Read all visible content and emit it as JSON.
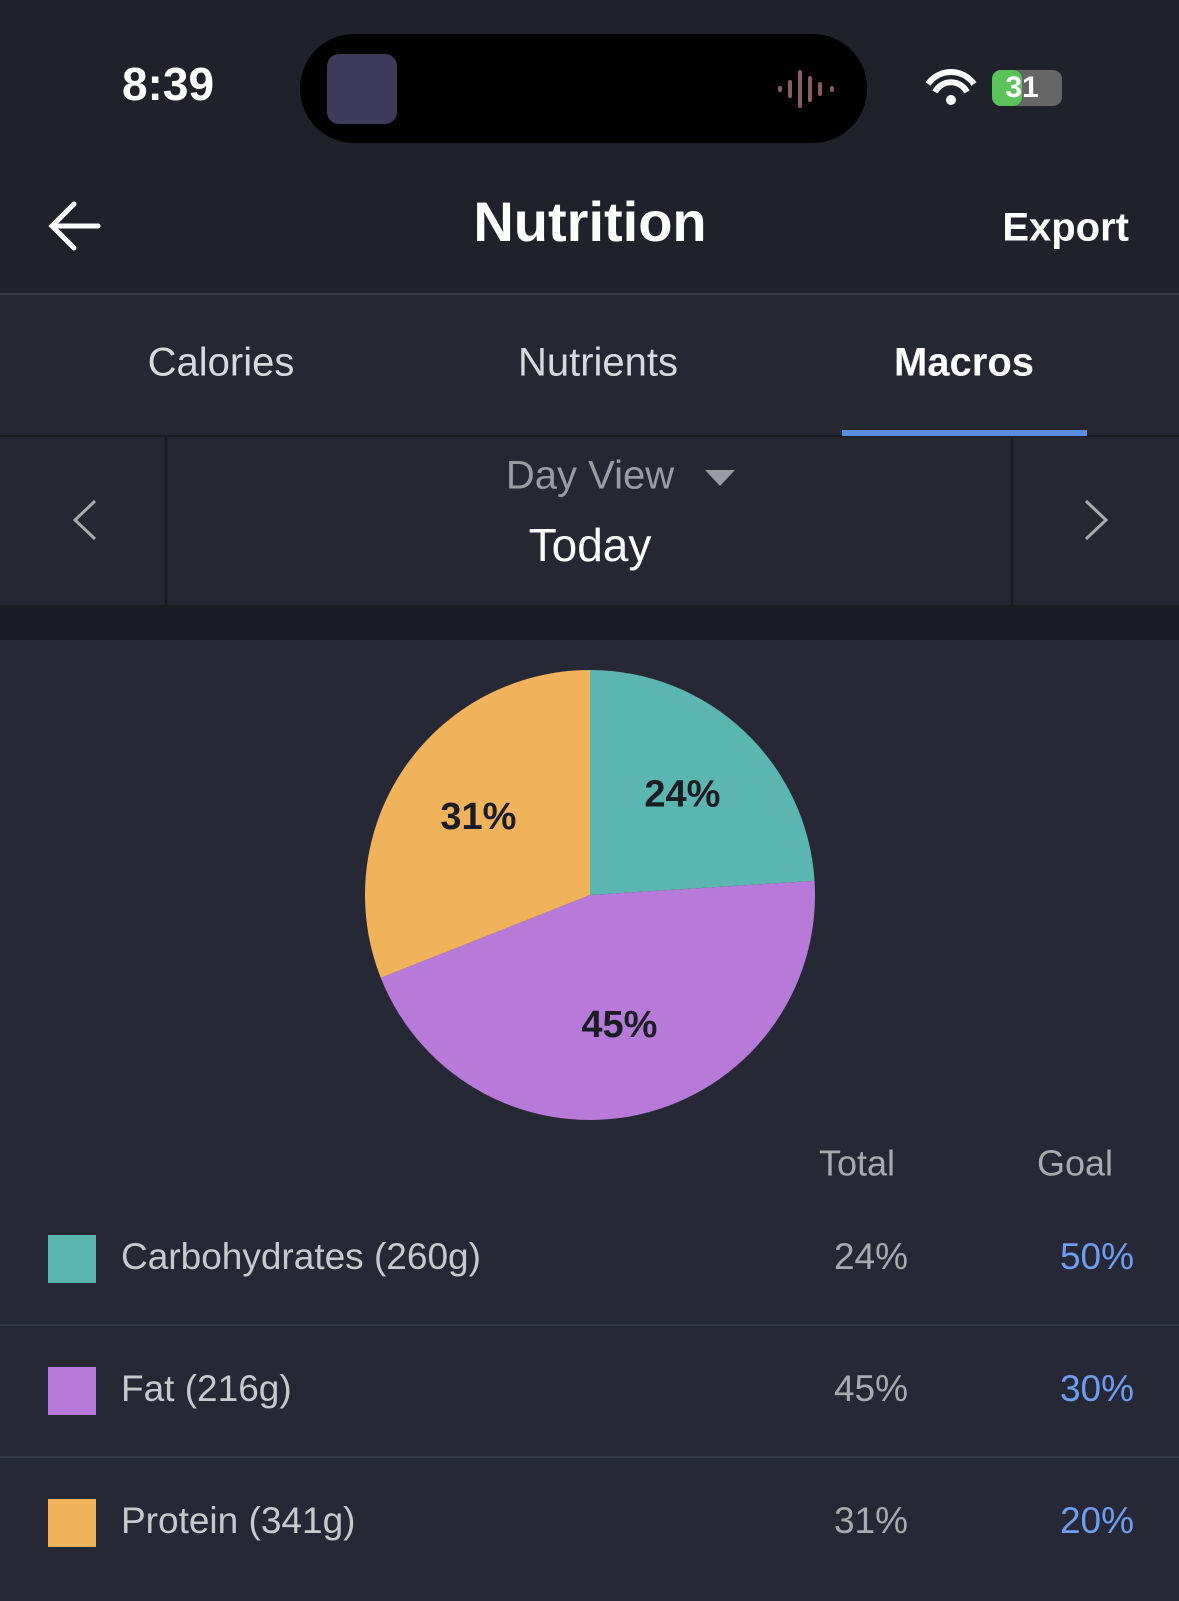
{
  "status_bar": {
    "time": "8:39",
    "battery": "31"
  },
  "header": {
    "title": "Nutrition",
    "action": "Export"
  },
  "tabs": [
    "Calories",
    "Nutrients",
    "Macros"
  ],
  "active_tab": 2,
  "date_selector": {
    "view": "Day View",
    "date": "Today"
  },
  "chart_data": {
    "type": "pie",
    "categories": [
      "Carbohydrates (260g)",
      "Fat (216g)",
      "Protein (341g)"
    ],
    "values": [
      24,
      45,
      31
    ],
    "value_labels": [
      "24%",
      "45%",
      "31%"
    ],
    "colors": [
      "#5bb5b0",
      "#b87ad8",
      "#f0b25a"
    ]
  },
  "macro_table": {
    "headers": [
      "Total",
      "Goal"
    ],
    "goals": [
      "50%",
      "30%",
      "20%"
    ]
  }
}
